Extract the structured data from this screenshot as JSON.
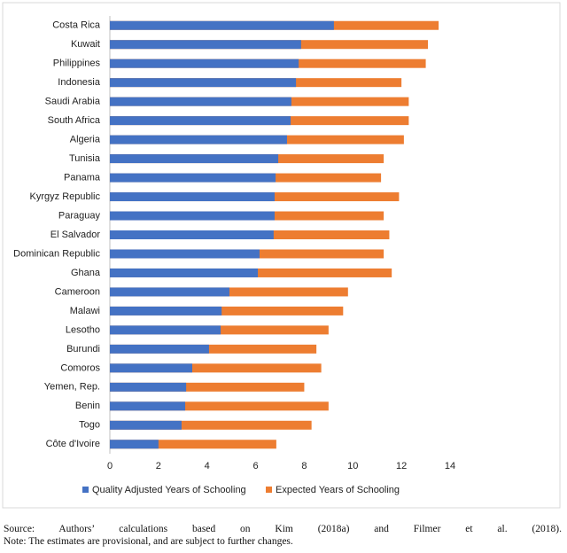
{
  "chart_data": {
    "type": "bar",
    "orientation": "horizontal",
    "overlap": true,
    "categories": [
      "Costa Rica",
      "Kuwait",
      "Philippines",
      "Indonesia",
      "Saudi Arabia",
      "South Africa",
      "Algeria",
      "Tunisia",
      "Panama",
      "Kyrgyz Republic",
      "Paraguay",
      "El Salvador",
      "Dominican Republic",
      "Ghana",
      "Cameroon",
      "Malawi",
      "Lesotho",
      "Burundi",
      "Comoros",
      "Yemen, Rep.",
      "Benin",
      "Togo",
      "Côte d'Ivoire"
    ],
    "series": [
      {
        "name": "Expected Years of Schooling",
        "color": "#ed7d31",
        "values": [
          13.53,
          13.09,
          13.0,
          12.0,
          12.3,
          12.3,
          12.1,
          11.27,
          11.16,
          11.9,
          11.27,
          11.5,
          11.27,
          11.6,
          9.8,
          9.6,
          9.0,
          8.5,
          8.7,
          8.0,
          9.0,
          8.3,
          6.85
        ]
      },
      {
        "name": "Quality Adjusted Years of Schooling",
        "color": "#4472c4",
        "values": [
          9.22,
          7.87,
          7.77,
          7.66,
          7.47,
          7.44,
          7.29,
          6.93,
          6.82,
          6.78,
          6.78,
          6.74,
          6.16,
          6.09,
          4.92,
          4.6,
          4.56,
          4.08,
          3.39,
          3.14,
          3.1,
          2.95,
          2.0
        ]
      }
    ],
    "legend_order": [
      1,
      0
    ],
    "xlim": [
      0,
      14
    ],
    "xticks": [
      0,
      2,
      4,
      6,
      8,
      10,
      12,
      14
    ],
    "grid": false
  },
  "footnote": {
    "source": "Source: Authors’ calculations based on Kim (2018a) and Filmer et al. (2018).",
    "note": "Note: The estimates are provisional, and are subject to further changes."
  }
}
